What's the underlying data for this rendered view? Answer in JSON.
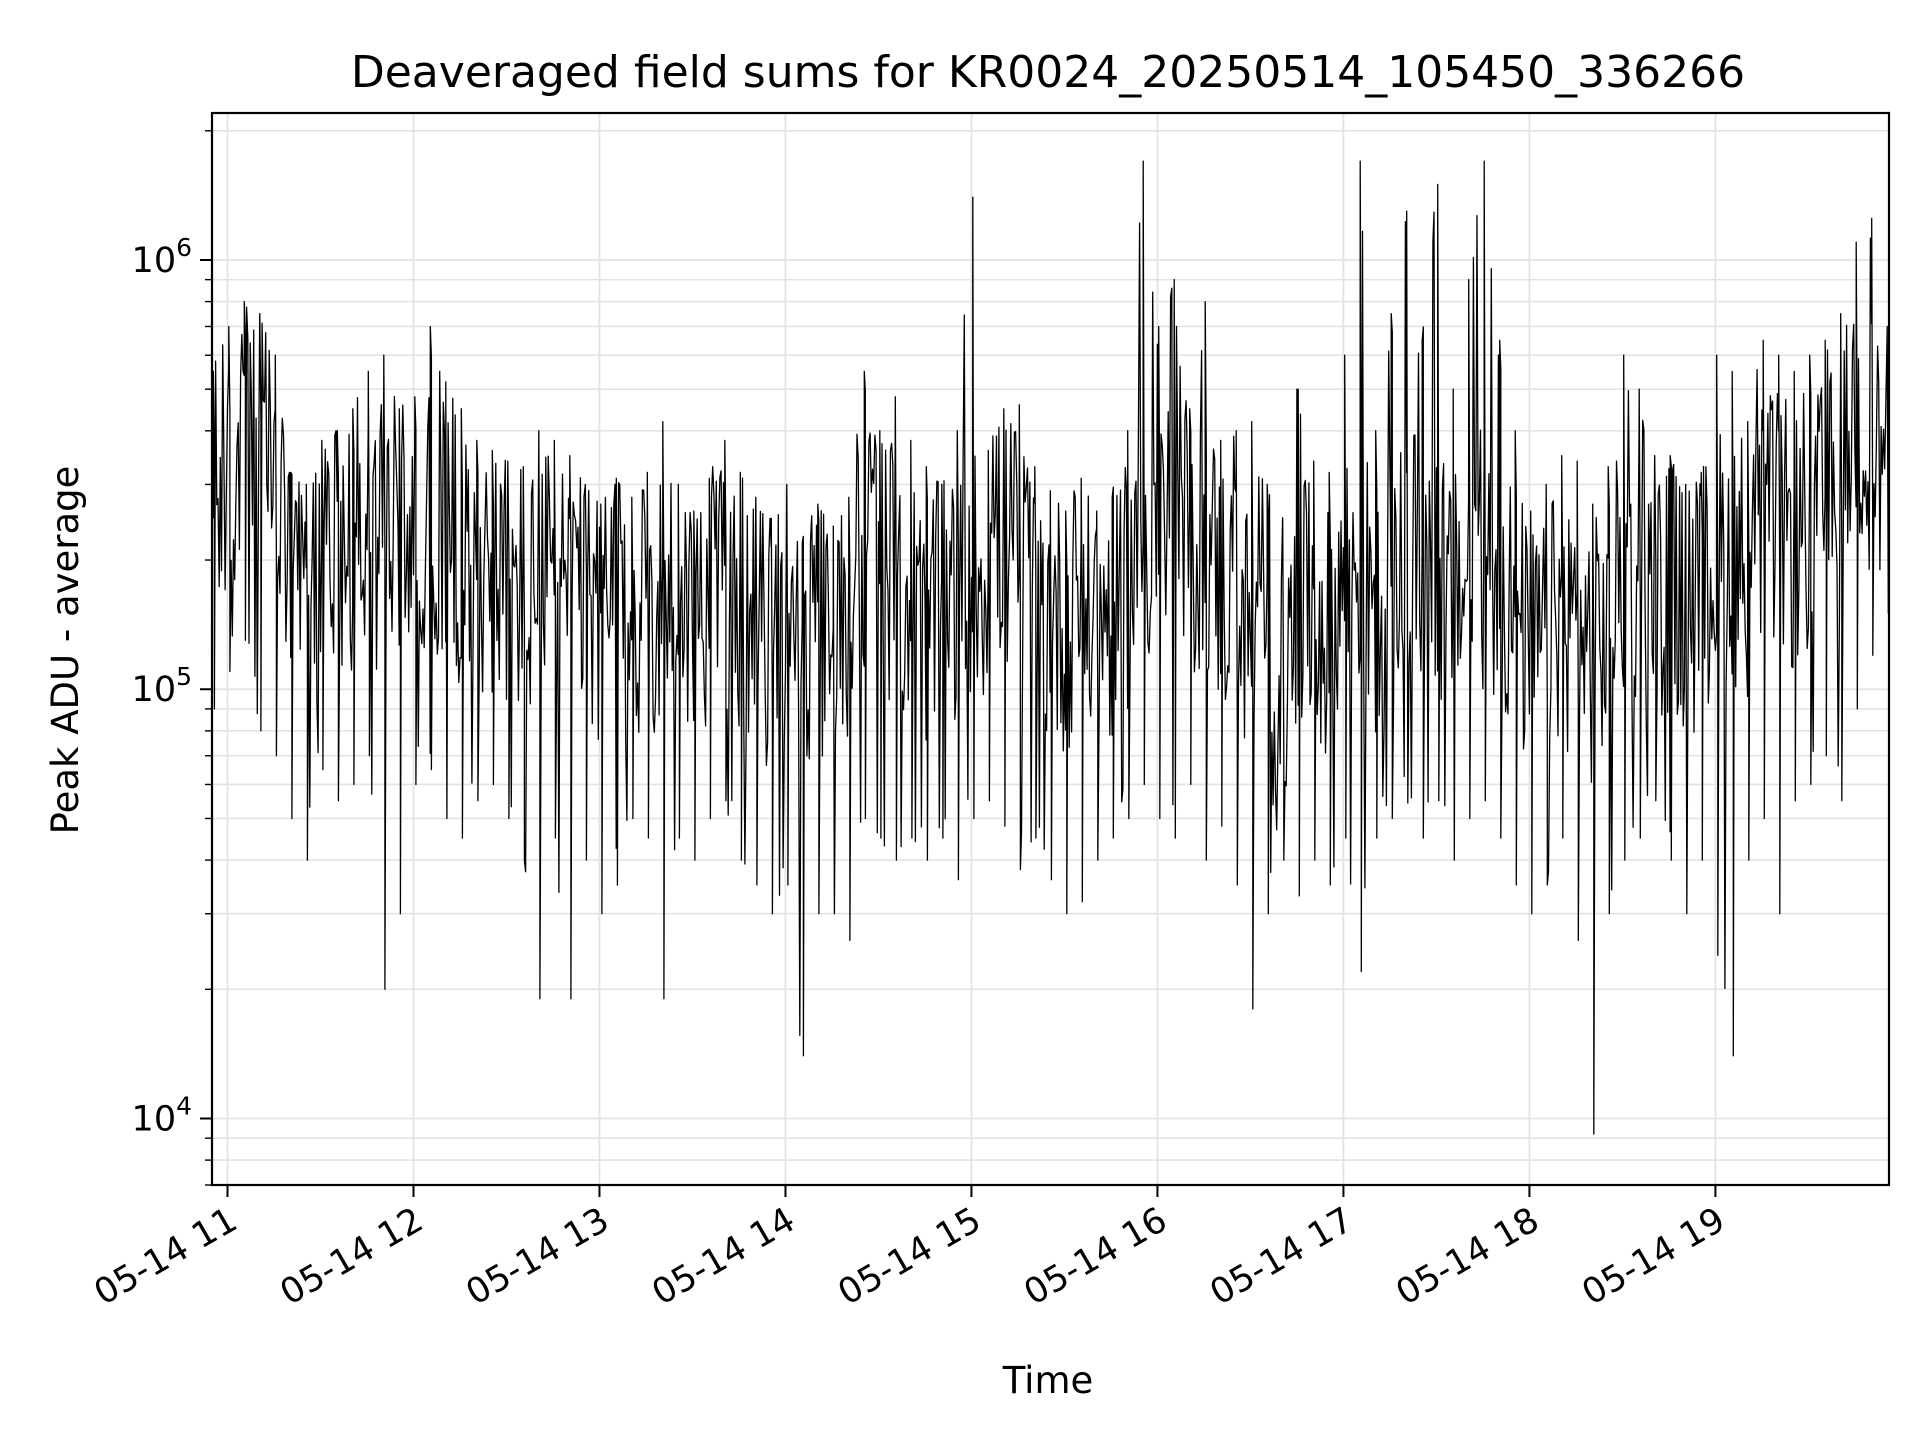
{
  "chart_data": {
    "type": "line",
    "title": "Deaveraged field sums for KR0024_20250514_105450_336266",
    "xlabel": "Time",
    "ylabel": "Peak ADU - average",
    "yscale": "log",
    "ylim": [
      7000,
      2200000
    ],
    "xlim": [
      "2025-05-14 10:55",
      "2025-05-14 19:56"
    ],
    "grid": true,
    "line_color": "#000000",
    "x_ticks": [
      {
        "value": "2025-05-14 11:00",
        "label": "05-14 11"
      },
      {
        "value": "2025-05-14 12:00",
        "label": "05-14 12"
      },
      {
        "value": "2025-05-14 13:00",
        "label": "05-14 13"
      },
      {
        "value": "2025-05-14 14:00",
        "label": "05-14 14"
      },
      {
        "value": "2025-05-14 15:00",
        "label": "05-14 15"
      },
      {
        "value": "2025-05-14 16:00",
        "label": "05-14 16"
      },
      {
        "value": "2025-05-14 17:00",
        "label": "05-14 17"
      },
      {
        "value": "2025-05-14 18:00",
        "label": "05-14 18"
      },
      {
        "value": "2025-05-14 19:00",
        "label": "05-14 19"
      }
    ],
    "y_ticks": [
      {
        "value": 10000,
        "base": "10",
        "exp": "4"
      },
      {
        "value": 100000,
        "base": "10",
        "exp": "5"
      },
      {
        "value": 1000000,
        "base": "10",
        "exp": "6"
      }
    ],
    "series": [
      {
        "x": [
          "2025-05-14 10:55",
          "2025-05-14 11:00",
          "2025-05-14 11:05",
          "2025-05-14 11:10",
          "2025-05-14 11:15",
          "2025-05-14 11:20",
          "2025-05-14 11:25",
          "2025-05-14 11:30",
          "2025-05-14 11:35",
          "2025-05-14 11:40",
          "2025-05-14 11:45",
          "2025-05-14 11:50",
          "2025-05-14 11:55",
          "2025-05-14 12:00",
          "2025-05-14 12:05",
          "2025-05-14 12:10",
          "2025-05-14 12:15",
          "2025-05-14 12:20",
          "2025-05-14 12:25",
          "2025-05-14 12:30",
          "2025-05-14 12:35",
          "2025-05-14 12:40",
          "2025-05-14 12:45",
          "2025-05-14 12:50",
          "2025-05-14 12:55",
          "2025-05-14 13:00",
          "2025-05-14 13:05",
          "2025-05-14 13:10",
          "2025-05-14 13:15",
          "2025-05-14 13:20",
          "2025-05-14 13:25",
          "2025-05-14 13:30",
          "2025-05-14 13:35",
          "2025-05-14 13:40",
          "2025-05-14 13:45",
          "2025-05-14 13:50",
          "2025-05-14 13:55",
          "2025-05-14 14:00",
          "2025-05-14 14:05",
          "2025-05-14 14:10",
          "2025-05-14 14:15",
          "2025-05-14 14:20",
          "2025-05-14 14:25",
          "2025-05-14 14:30",
          "2025-05-14 14:35",
          "2025-05-14 14:40",
          "2025-05-14 14:45",
          "2025-05-14 14:50",
          "2025-05-14 14:55",
          "2025-05-14 15:00",
          "2025-05-14 15:05",
          "2025-05-14 15:10",
          "2025-05-14 15:15",
          "2025-05-14 15:20",
          "2025-05-14 15:25",
          "2025-05-14 15:30",
          "2025-05-14 15:35",
          "2025-05-14 15:40",
          "2025-05-14 15:45",
          "2025-05-14 15:50",
          "2025-05-14 15:55",
          "2025-05-14 16:00",
          "2025-05-14 16:05",
          "2025-05-14 16:10",
          "2025-05-14 16:15",
          "2025-05-14 16:20",
          "2025-05-14 16:25",
          "2025-05-14 16:30",
          "2025-05-14 16:35",
          "2025-05-14 16:40",
          "2025-05-14 16:45",
          "2025-05-14 16:50",
          "2025-05-14 16:55",
          "2025-05-14 17:00",
          "2025-05-14 17:05",
          "2025-05-14 17:10",
          "2025-05-14 17:15",
          "2025-05-14 17:20",
          "2025-05-14 17:25",
          "2025-05-14 17:30",
          "2025-05-14 17:35",
          "2025-05-14 17:40",
          "2025-05-14 17:45",
          "2025-05-14 17:50",
          "2025-05-14 17:55",
          "2025-05-14 18:00",
          "2025-05-14 18:05",
          "2025-05-14 18:10",
          "2025-05-14 18:15",
          "2025-05-14 18:20",
          "2025-05-14 18:25",
          "2025-05-14 18:30",
          "2025-05-14 18:35",
          "2025-05-14 18:40",
          "2025-05-14 18:45",
          "2025-05-14 18:50",
          "2025-05-14 18:55",
          "2025-05-14 19:00",
          "2025-05-14 19:05",
          "2025-05-14 19:10",
          "2025-05-14 19:15",
          "2025-05-14 19:20",
          "2025-05-14 19:25",
          "2025-05-14 19:30",
          "2025-05-14 19:35",
          "2025-05-14 19:40",
          "2025-05-14 19:45",
          "2025-05-14 19:50",
          "2025-05-14 19:55"
        ],
        "y": [
          300000,
          280000,
          380000,
          450000,
          320000,
          190000,
          160000,
          200000,
          240000,
          210000,
          220000,
          230000,
          250000,
          240000,
          260000,
          230000,
          200000,
          210000,
          190000,
          180000,
          170000,
          160000,
          200000,
          180000,
          170000,
          150000,
          160000,
          140000,
          150000,
          170000,
          160000,
          150000,
          170000,
          180000,
          160000,
          140000,
          130000,
          150000,
          120000,
          140000,
          130000,
          150000,
          230000,
          200000,
          190000,
          160000,
          150000,
          150000,
          170000,
          180000,
          190000,
          220000,
          210000,
          160000,
          150000,
          140000,
          170000,
          140000,
          150000,
          180000,
          220000,
          240000,
          250000,
          200000,
          230000,
          180000,
          160000,
          130000,
          100000,
          90000,
          140000,
          160000,
          130000,
          180000,
          200000,
          150000,
          170000,
          190000,
          210000,
          200000,
          150000,
          190000,
          200000,
          170000,
          160000,
          120000,
          130000,
          150000,
          140000,
          120000,
          140000,
          190000,
          170000,
          160000,
          180000,
          150000,
          160000,
          200000,
          210000,
          190000,
          230000,
          250000,
          220000,
          240000,
          260000,
          290000,
          450000,
          380000,
          320000
        ],
        "y_hi": [
          550000,
          700000,
          800000,
          750000,
          600000,
          320000,
          300000,
          380000,
          400000,
          450000,
          550000,
          600000,
          450000,
          480000,
          700000,
          520000,
          450000,
          380000,
          360000,
          340000,
          330000,
          400000,
          380000,
          350000,
          300000,
          270000,
          310000,
          280000,
          320000,
          420000,
          300000,
          260000,
          310000,
          380000,
          320000,
          280000,
          250000,
          300000,
          220000,
          270000,
          240000,
          280000,
          550000,
          400000,
          480000,
          380000,
          330000,
          300000,
          400000,
          1400000,
          360000,
          450000,
          460000,
          330000,
          290000,
          260000,
          310000,
          260000,
          280000,
          400000,
          1700000,
          700000,
          900000,
          450000,
          800000,
          380000,
          400000,
          420000,
          300000,
          250000,
          500000,
          340000,
          320000,
          600000,
          1700000,
          400000,
          750000,
          1300000,
          650000,
          1500000,
          500000,
          900000,
          1700000,
          650000,
          400000,
          260000,
          300000,
          350000,
          340000,
          270000,
          330000,
          600000,
          500000,
          350000,
          350000,
          300000,
          320000,
          600000,
          550000,
          420000,
          650000,
          600000,
          550000,
          600000,
          650000,
          750000,
          1100000,
          1250000,
          700000
        ],
        "y_lo": [
          90000,
          110000,
          130000,
          80000,
          70000,
          50000,
          40000,
          65000,
          55000,
          60000,
          70000,
          20000,
          30000,
          60000,
          65000,
          50000,
          45000,
          55000,
          60000,
          50000,
          40000,
          19000,
          45000,
          19000,
          40000,
          30000,
          35000,
          50000,
          45000,
          19000,
          45000,
          40000,
          50000,
          55000,
          40000,
          35000,
          30000,
          35000,
          14000,
          30000,
          30000,
          26000,
          50000,
          45000,
          40000,
          45000,
          40000,
          45000,
          36000,
          50000,
          55000,
          48000,
          38000,
          45000,
          36000,
          30000,
          32000,
          40000,
          45000,
          50000,
          60000,
          50000,
          45000,
          60000,
          40000,
          48000,
          35000,
          18000,
          30000,
          40000,
          33000,
          40000,
          35000,
          45000,
          22000,
          45000,
          50000,
          55000,
          45000,
          55000,
          40000,
          50000,
          55000,
          45000,
          35000,
          30000,
          35000,
          45000,
          26000,
          9200,
          30000,
          40000,
          45000,
          55000,
          40000,
          30000,
          40000,
          24000,
          14000,
          40000,
          50000,
          30000,
          55000,
          60000,
          70000,
          55000,
          90000,
          120000,
          150000
        ]
      }
    ]
  }
}
